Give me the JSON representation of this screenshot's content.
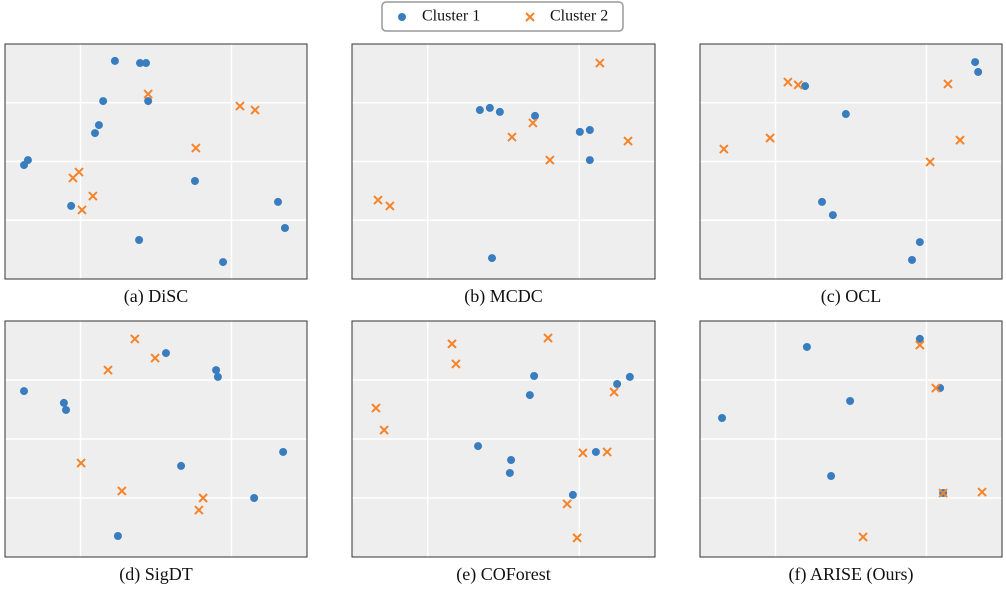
{
  "chart_data": [
    {
      "type": "scatter",
      "caption": "(a) DiSC",
      "xlim": [
        0,
        100
      ],
      "ylim": [
        0,
        100
      ],
      "xticks": [
        25,
        75
      ],
      "yticks": [
        25,
        50,
        75
      ],
      "grid": true,
      "series": [
        {
          "name": "Cluster 1",
          "color": "#3a7dbf",
          "marker": "circle",
          "x": [
            36.4,
            44.7,
            46.7,
            32.5,
            47.4,
            29.8,
            31.1,
            7.6,
            6.3,
            62.9,
            21.9,
            44.4,
            72.2,
            90.4,
            92.7
          ],
          "values": [
            92.8,
            91.9,
            91.9,
            75.7,
            75.7,
            62.1,
            65.5,
            50.6,
            48.5,
            41.7,
            31.1,
            16.6,
            7.2,
            32.8,
            21.7
          ]
        },
        {
          "name": "Cluster 2",
          "color": "#f5832a",
          "marker": "x",
          "x": [
            47.4,
            77.8,
            82.8,
            63.2,
            22.5,
            24.5,
            29.1,
            25.5
          ],
          "values": [
            78.7,
            73.6,
            71.9,
            55.7,
            43.0,
            45.5,
            35.3,
            29.4
          ]
        }
      ]
    },
    {
      "type": "scatter",
      "caption": "(b) MCDC",
      "xlim": [
        0,
        100
      ],
      "ylim": [
        0,
        100
      ],
      "xticks": [
        25,
        75
      ],
      "yticks": [
        25,
        50,
        75
      ],
      "grid": true,
      "series": [
        {
          "name": "Cluster 1",
          "color": "#3a7dbf",
          "marker": "circle",
          "x": [
            45.5,
            42.2,
            48.8,
            60.4,
            75.2,
            78.5,
            78.5,
            46.2
          ],
          "values": [
            72.8,
            71.9,
            71.1,
            69.4,
            62.6,
            63.4,
            50.6,
            8.9
          ]
        },
        {
          "name": "Cluster 2",
          "color": "#f5832a",
          "marker": "x",
          "x": [
            81.8,
            59.7,
            52.8,
            65.3,
            91.1,
            12.5,
            8.6
          ],
          "values": [
            91.9,
            66.4,
            60.4,
            50.6,
            58.7,
            31.1,
            33.6
          ]
        }
      ]
    },
    {
      "type": "scatter",
      "caption": "(c) OCL",
      "xlim": [
        0,
        100
      ],
      "ylim": [
        0,
        100
      ],
      "xticks": [
        25,
        75
      ],
      "yticks": [
        25,
        50,
        75
      ],
      "grid": true,
      "series": [
        {
          "name": "Cluster 1",
          "color": "#3a7dbf",
          "marker": "circle",
          "x": [
            91.1,
            92.1,
            34.8,
            48.3,
            40.4,
            44.0,
            72.8,
            70.2
          ],
          "values": [
            92.3,
            88.1,
            82.1,
            70.2,
            32.8,
            27.2,
            15.7,
            8.1
          ]
        },
        {
          "name": "Cluster 2",
          "color": "#f5832a",
          "marker": "x",
          "x": [
            29.1,
            32.5,
            82.1,
            23.2,
            7.9,
            86.1,
            76.2
          ],
          "values": [
            83.8,
            82.6,
            83.0,
            60.0,
            55.3,
            59.1,
            49.8
          ]
        }
      ]
    },
    {
      "type": "scatter",
      "caption": "(d) SigDT",
      "xlim": [
        0,
        100
      ],
      "ylim": [
        0,
        100
      ],
      "xticks": [
        25,
        75
      ],
      "yticks": [
        25,
        50,
        75
      ],
      "grid": true,
      "series": [
        {
          "name": "Cluster 1",
          "color": "#3a7dbf",
          "marker": "circle",
          "x": [
            6.3,
            19.5,
            20.2,
            53.3,
            69.9,
            70.5,
            58.3,
            92.1,
            82.5,
            37.4
          ],
          "values": [
            70.3,
            65.3,
            62.3,
            86.4,
            79.2,
            76.3,
            38.6,
            44.5,
            25.0,
            8.9
          ]
        },
        {
          "name": "Cluster 2",
          "color": "#f5832a",
          "marker": "x",
          "x": [
            43.0,
            34.1,
            49.7,
            25.2,
            38.7,
            65.6,
            64.2
          ],
          "values": [
            92.4,
            79.2,
            84.3,
            39.8,
            28.0,
            25.0,
            19.9
          ]
        }
      ]
    },
    {
      "type": "scatter",
      "caption": "(e) COForest",
      "xlim": [
        0,
        100
      ],
      "ylim": [
        0,
        100
      ],
      "xticks": [
        25,
        75
      ],
      "yticks": [
        25,
        50,
        75
      ],
      "grid": true,
      "series": [
        {
          "name": "Cluster 1",
          "color": "#3a7dbf",
          "marker": "circle",
          "x": [
            60.1,
            58.7,
            91.7,
            87.5,
            41.6,
            52.5,
            52.1,
            72.9,
            80.5
          ],
          "values": [
            76.7,
            68.6,
            76.3,
            73.3,
            47.0,
            41.1,
            35.6,
            26.3,
            44.5
          ]
        },
        {
          "name": "Cluster 2",
          "color": "#f5832a",
          "marker": "x",
          "x": [
            33.0,
            34.3,
            64.7,
            7.9,
            10.6,
            86.5,
            76.2,
            84.2,
            71.0,
            74.3
          ],
          "values": [
            90.3,
            81.8,
            92.8,
            63.1,
            53.8,
            69.9,
            44.1,
            44.5,
            22.5,
            8.1
          ]
        }
      ]
    },
    {
      "type": "scatter",
      "caption": "(f) ARISE (Ours)",
      "xlim": [
        0,
        100
      ],
      "ylim": [
        0,
        100
      ],
      "xticks": [
        25,
        75
      ],
      "yticks": [
        25,
        50,
        75
      ],
      "grid": true,
      "series": [
        {
          "name": "Cluster 1",
          "color": "#3a7dbf",
          "marker": "circle",
          "x": [
            35.4,
            49.7,
            7.3,
            43.4,
            72.8,
            79.5,
            80.5
          ],
          "values": [
            89.0,
            66.1,
            58.9,
            34.3,
            92.4,
            71.6,
            27.1
          ]
        },
        {
          "name": "Cluster 2",
          "color": "#f5832a",
          "marker": "x",
          "x": [
            72.8,
            78.1,
            80.5,
            93.4,
            54.0
          ],
          "values": [
            89.8,
            71.6,
            27.1,
            27.5,
            8.5
          ]
        }
      ]
    }
  ]
}
